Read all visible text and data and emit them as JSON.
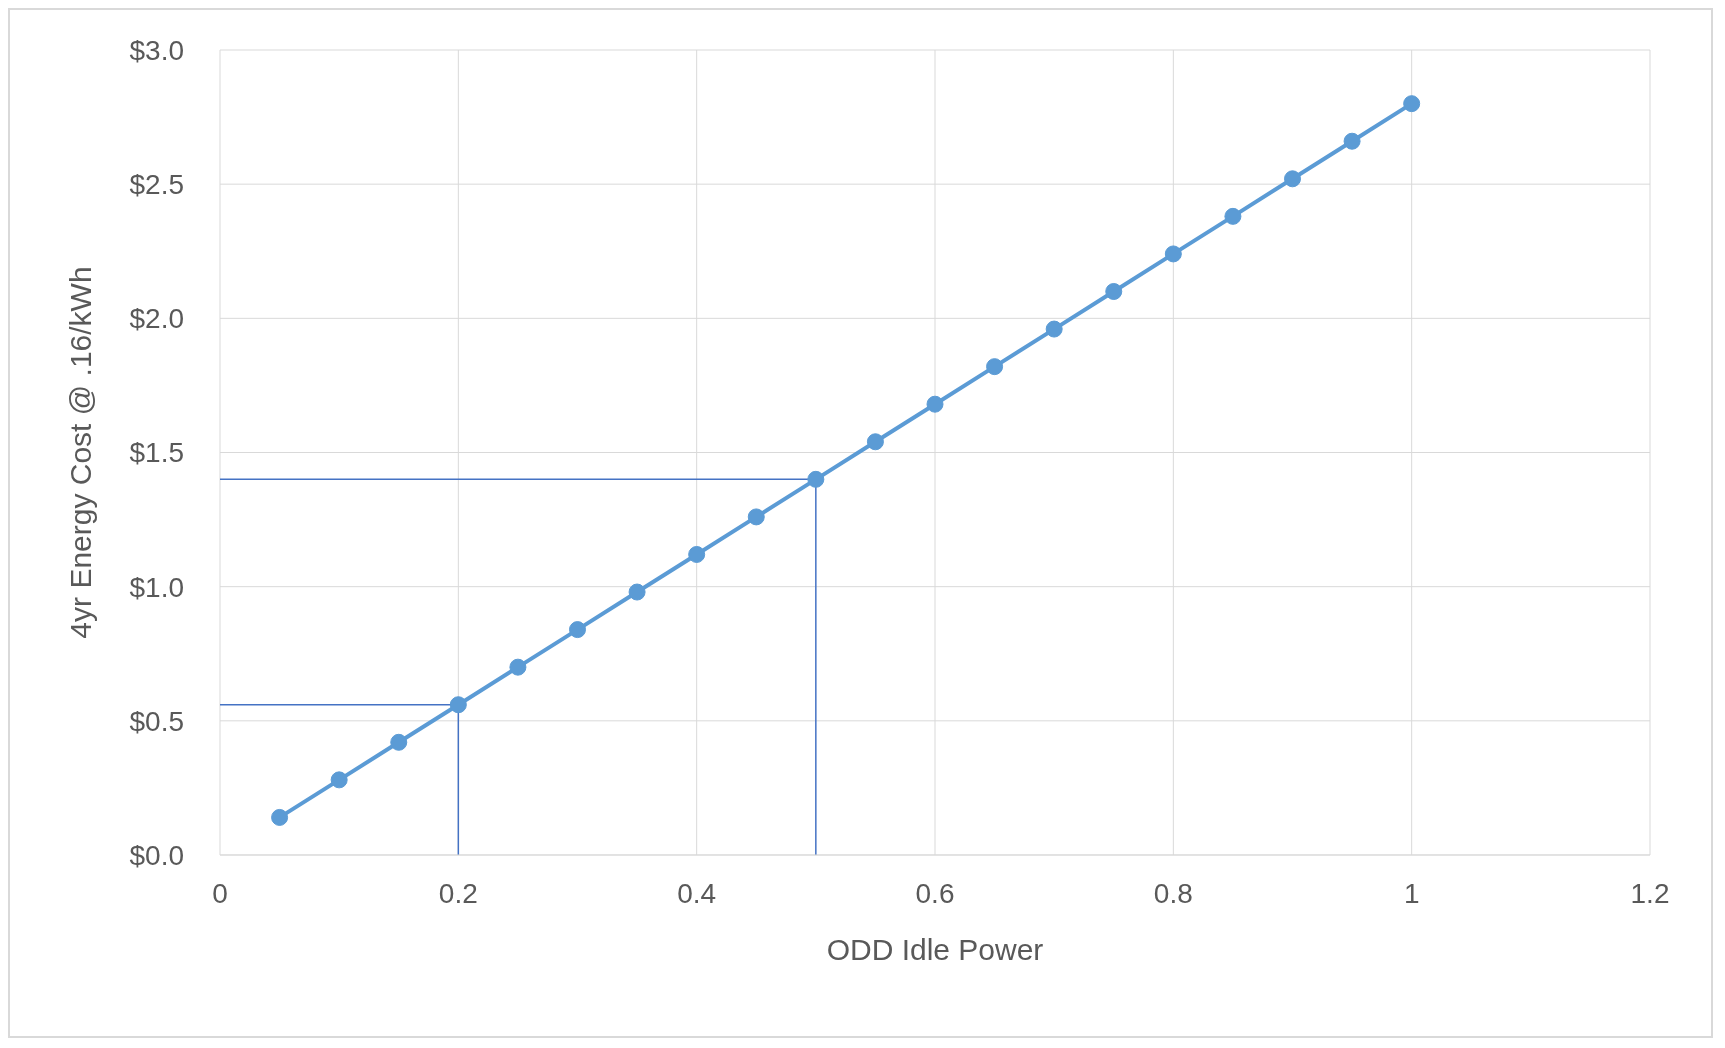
{
  "chart_data": {
    "type": "line",
    "xlabel": "ODD Idle Power",
    "ylabel": "4yr Energy Cost @ .16/kWh",
    "x": [
      0.05,
      0.1,
      0.15,
      0.2,
      0.25,
      0.3,
      0.35,
      0.4,
      0.45,
      0.5,
      0.55,
      0.6,
      0.65,
      0.7,
      0.75,
      0.8,
      0.85,
      0.9,
      0.95,
      1
    ],
    "series": [
      {
        "color": "#5b9bd5",
        "values": [
          0.14,
          0.28,
          0.42,
          0.56,
          0.7,
          0.84,
          0.98,
          1.12,
          1.26,
          1.4,
          1.54,
          1.68,
          1.82,
          1.96,
          2.1,
          2.24,
          2.38,
          2.52,
          2.66,
          2.8
        ]
      }
    ],
    "xlim": [
      0,
      1.2
    ],
    "xticks": [
      0,
      0.2,
      0.4,
      0.6,
      0.8,
      1,
      1.2
    ],
    "ylim": [
      0,
      3
    ],
    "yticks": [
      {
        "value": 0,
        "label": "$0.0"
      },
      {
        "value": 0.5,
        "label": "$0.5"
      },
      {
        "value": 1,
        "label": "$1.0"
      },
      {
        "value": 1.5,
        "label": "$1.5"
      },
      {
        "value": 2,
        "label": "$2.0"
      },
      {
        "value": 2.5,
        "label": "$2.5"
      },
      {
        "value": 3,
        "label": "$3.0"
      }
    ],
    "ref_lines": [
      {
        "axis": "x",
        "value": 0.2,
        "color": "#4472c4"
      },
      {
        "axis": "y",
        "value": 0.56,
        "color": "#4472c4"
      },
      {
        "axis": "x",
        "value": 0.5,
        "color": "#4472c4"
      },
      {
        "axis": "y",
        "value": 1.4,
        "color": "#4472c4"
      }
    ],
    "grid": true,
    "marker": "circle",
    "line_style": "solid"
  }
}
